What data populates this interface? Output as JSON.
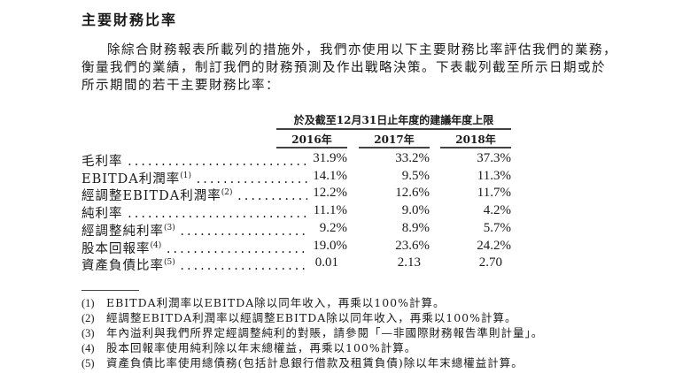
{
  "heading": "主要財務比率",
  "paragraph": [
    "除綜合財務報表所載列的措施外，我們亦使用以下主要財務比率評估我們的業務，",
    "衡量我們的業績，制訂我們的財務預測及作出戰略決策。下表載列截至所示日期或於",
    "所示期間的若干主要財務比率："
  ],
  "table": {
    "group_header": "於及截至12月31日止年度的建議年度上限",
    "columns": [
      "2016年",
      "2017年",
      "2018年"
    ],
    "rows": [
      {
        "label": "毛利率",
        "note": "",
        "values": [
          "31.9%",
          "33.2%",
          "37.3%"
        ]
      },
      {
        "label": "EBITDA利潤率",
        "note": "(1)",
        "values": [
          "14.1%",
          "9.5%",
          "11.3%"
        ]
      },
      {
        "label": "經調整EBITDA利潤率",
        "note": "(2)",
        "values": [
          "12.2%",
          "12.6%",
          "11.7%"
        ]
      },
      {
        "label": "純利率",
        "note": "",
        "values": [
          "11.1%",
          "9.0%",
          "4.2%"
        ]
      },
      {
        "label": "經調整純利率",
        "note": "(3)",
        "values": [
          "9.2%",
          "8.9%",
          "5.7%"
        ]
      },
      {
        "label": "股本回報率",
        "note": "(4)",
        "values": [
          "19.0%",
          "23.6%",
          "24.2%"
        ]
      },
      {
        "label": "資產負債比率",
        "note": "(5)",
        "values": [
          "0.01",
          "2.13",
          "2.70"
        ]
      }
    ]
  },
  "footnotes": [
    {
      "num": "(1)",
      "text": "EBITDA利潤率以EBITDA除以同年收入，再乘以100%計算。"
    },
    {
      "num": "(2)",
      "text": "經調整EBITDA利潤率以經調整EBITDA除以同年收入，再乘以100%計算。"
    },
    {
      "num": "(3)",
      "text": "年內溢利與我們所界定經調整純利的對賬，請參閱「—非國際財務報告準則計量」。"
    },
    {
      "num": "(4)",
      "text": "股本回報率使用純利除以年末總權益，再乘以100%計算。"
    },
    {
      "num": "(5)",
      "text": "資產負債比率使用總債務(包括計息銀行借款及租賃負債)除以年末總權益計算。"
    }
  ]
}
